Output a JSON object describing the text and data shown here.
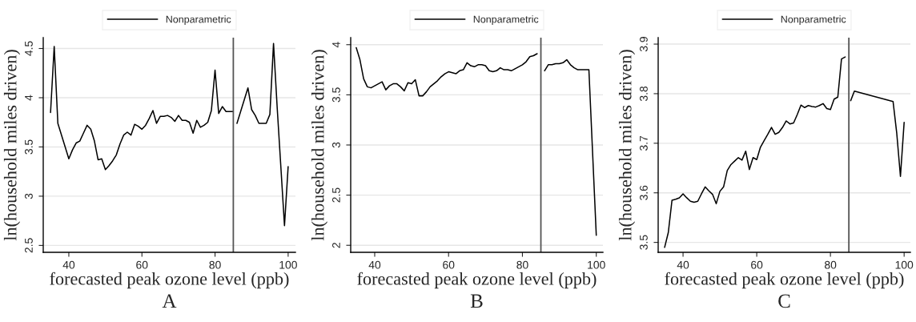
{
  "chart_data": [
    {
      "type": "line",
      "xlabel": "forecasted peak ozone level (ppb)",
      "ylabel": "ln(household miles driven)",
      "xlim": [
        33,
        102
      ],
      "ylim": [
        2.43,
        4.61
      ],
      "xticks": [
        40,
        60,
        80,
        100
      ],
      "yticks": [
        2.5,
        3,
        3.5,
        4,
        4.5
      ],
      "grid": "y",
      "legend": "top",
      "ref_lines": [
        {
          "axis": "x",
          "value": 85,
          "color": "#555555"
        }
      ],
      "annotations": [
        "A"
      ],
      "series": [
        {
          "name": "Nonparametric",
          "color": "#000000",
          "x": [
            35,
            36,
            37,
            38,
            39,
            40,
            41,
            42,
            43,
            44,
            45,
            46,
            47,
            48,
            49,
            50,
            51,
            52,
            53,
            54,
            55,
            56,
            57,
            58,
            59,
            60,
            61,
            62,
            63,
            64,
            65,
            66,
            67,
            68,
            69,
            70,
            71,
            72,
            73,
            74,
            75,
            76,
            77,
            78,
            79,
            80,
            81,
            82,
            83,
            84,
            85,
            85.5,
            86,
            87,
            88,
            89,
            90,
            91,
            92,
            93,
            94,
            95,
            96,
            97,
            98,
            99,
            100
          ],
          "values": [
            3.85,
            4.52,
            3.74,
            3.62,
            3.5,
            3.38,
            3.47,
            3.54,
            3.56,
            3.64,
            3.72,
            3.68,
            3.56,
            3.37,
            3.38,
            3.27,
            3.31,
            3.36,
            3.42,
            3.53,
            3.62,
            3.65,
            3.62,
            3.73,
            3.71,
            3.68,
            3.72,
            3.79,
            3.87,
            3.74,
            3.81,
            3.81,
            3.82,
            3.8,
            3.76,
            3.82,
            3.77,
            3.77,
            3.75,
            3.64,
            3.77,
            3.7,
            3.72,
            3.75,
            3.87,
            4.28,
            3.84,
            3.91,
            3.86,
            3.86,
            3.86,
            null,
            3.74,
            3.86,
            3.98,
            4.1,
            3.88,
            3.82,
            3.74,
            3.74,
            3.74,
            3.83,
            4.55,
            3.9,
            3.3,
            2.7,
            3.3
          ]
        }
      ]
    },
    {
      "type": "line",
      "xlabel": "forecasted peak ozone level (ppb)",
      "ylabel": "ln(household miles driven)",
      "xlim": [
        33.5,
        101.8
      ],
      "ylim": [
        1.93,
        4.07
      ],
      "xticks": [
        40,
        60,
        80,
        100
      ],
      "yticks": [
        2,
        2.5,
        3,
        3.5,
        4
      ],
      "grid": "y",
      "legend": "top",
      "ref_lines": [
        {
          "axis": "x",
          "value": 85,
          "color": "#555555"
        }
      ],
      "annotations": [
        "B"
      ],
      "series": [
        {
          "name": "Nonparametric",
          "color": "#000000",
          "x": [
            35,
            36,
            37,
            38,
            39,
            40,
            41,
            42,
            43,
            44,
            45,
            46,
            47,
            48,
            49,
            50,
            51,
            52,
            53,
            54,
            55,
            56,
            57,
            58,
            59,
            60,
            61,
            62,
            63,
            64,
            65,
            66,
            67,
            68,
            69,
            70,
            71,
            72,
            73,
            74,
            75,
            76,
            77,
            78,
            79,
            80,
            81,
            82,
            83,
            84,
            85,
            86,
            87,
            88,
            89,
            90,
            91,
            92,
            93,
            94,
            95,
            96,
            97,
            98,
            100
          ],
          "values": [
            3.97,
            3.85,
            3.66,
            3.58,
            3.57,
            3.59,
            3.61,
            3.63,
            3.55,
            3.59,
            3.61,
            3.61,
            3.58,
            3.54,
            3.62,
            3.61,
            3.65,
            3.49,
            3.49,
            3.53,
            3.58,
            3.61,
            3.64,
            3.68,
            3.71,
            3.73,
            3.72,
            3.71,
            3.74,
            3.75,
            3.82,
            3.79,
            3.78,
            3.8,
            3.8,
            3.79,
            3.74,
            3.73,
            3.74,
            3.77,
            3.75,
            3.75,
            3.74,
            3.76,
            3.78,
            3.8,
            3.83,
            3.88,
            3.89,
            3.91,
            null,
            3.74,
            3.8,
            3.8,
            3.81,
            3.81,
            3.82,
            3.85,
            3.8,
            3.77,
            3.75,
            3.75,
            3.75,
            3.75,
            2.1
          ]
        }
      ]
    },
    {
      "type": "line",
      "xlabel": "forecasted peak ozone level (ppb)",
      "ylabel": "ln(household miles driven)",
      "xlim": [
        33.25,
        101.7
      ],
      "ylim": [
        3.48,
        3.913
      ],
      "xticks": [
        40,
        60,
        80,
        100
      ],
      "yticks": [
        3.5,
        3.6,
        3.7,
        3.8,
        3.9
      ],
      "grid": "y",
      "legend": "top",
      "ref_lines": [
        {
          "axis": "x",
          "value": 85,
          "color": "#555555"
        }
      ],
      "annotations": [
        "C"
      ],
      "series": [
        {
          "name": "Nonparametric",
          "color": "#000000",
          "x": [
            35,
            36,
            37,
            38,
            39,
            40,
            41,
            42,
            43,
            44,
            45,
            46,
            47,
            48,
            49,
            50,
            51,
            52,
            53,
            54,
            55,
            56,
            57,
            58,
            59,
            60,
            61,
            62,
            63,
            64,
            65,
            66,
            67,
            68,
            69,
            70,
            71,
            72,
            73,
            74,
            75,
            76,
            77,
            78,
            79,
            80,
            81,
            82,
            83,
            84,
            85,
            85.5,
            86.5,
            97,
            98,
            99,
            100
          ],
          "values": [
            3.49,
            3.52,
            3.585,
            3.587,
            3.59,
            3.598,
            3.59,
            3.583,
            3.581,
            3.583,
            3.598,
            3.612,
            3.604,
            3.597,
            3.578,
            3.603,
            3.612,
            3.645,
            3.657,
            3.664,
            3.671,
            3.666,
            3.684,
            3.647,
            3.671,
            3.667,
            3.692,
            3.705,
            3.718,
            3.732,
            3.718,
            3.722,
            3.732,
            3.745,
            3.739,
            3.741,
            3.758,
            3.777,
            3.772,
            3.776,
            3.774,
            3.773,
            3.776,
            3.78,
            3.77,
            3.768,
            3.789,
            3.793,
            3.87,
            3.874,
            null,
            3.786,
            3.805,
            3.784,
            3.72,
            3.633,
            3.742
          ]
        }
      ]
    }
  ]
}
